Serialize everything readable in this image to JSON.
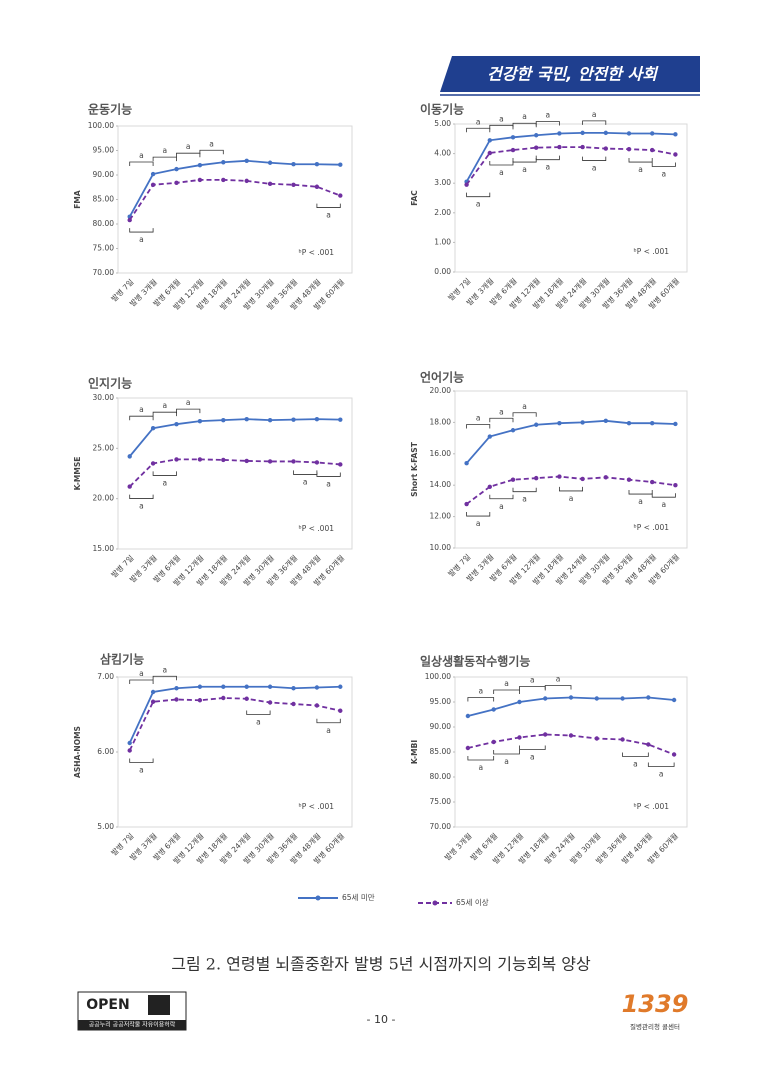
{
  "header": {
    "banner": "건강한 국민, 안전한 사회"
  },
  "chart_data": [
    {
      "type": "line",
      "title": "운동기능",
      "y_label": "FMA",
      "annotation": "ᵇP < .001",
      "categories": [
        "발병 7일",
        "발병 3개월",
        "발병 6개월",
        "발병 12개월",
        "발병 18개월",
        "발병 24개월",
        "발병 30개월",
        "발병 36개월",
        "발병 48개월",
        "발병 60개월"
      ],
      "series": [
        {
          "name": "65세 미만",
          "color": "#4472c4",
          "line_style": "solid",
          "values": [
            81.5,
            90.2,
            91.2,
            92,
            92.6,
            92.9,
            92.5,
            92.2,
            92.2,
            92.1
          ]
        },
        {
          "name": "65세 이상",
          "color": "#7030a0",
          "line_style": "dashed",
          "values": [
            80.8,
            88,
            88.4,
            89,
            89,
            88.8,
            88.2,
            88,
            87.6,
            85.8
          ]
        }
      ],
      "ylim": [
        70,
        100
      ],
      "yticks": [
        {
          "value": 70,
          "label": "70.00"
        },
        {
          "value": 75,
          "label": "75.00"
        },
        {
          "value": 80,
          "label": "80.00"
        },
        {
          "value": 85,
          "label": "85.00"
        },
        {
          "value": 90,
          "label": "90.00"
        },
        {
          "value": 95,
          "label": "95.00"
        },
        {
          "value": 100,
          "label": "100.00"
        }
      ],
      "upper_brackets": [
        {
          "between": [
            "발병 7일",
            "발병 3개월"
          ],
          "label": "a"
        },
        {
          "between": [
            "발병 3개월",
            "발병 6개월"
          ],
          "label": "a"
        },
        {
          "between": [
            "발병 6개월",
            "발병 12개월"
          ],
          "label": "a"
        },
        {
          "between": [
            "발병 12개월",
            "발병 18개월"
          ],
          "label": "a"
        }
      ],
      "lower_brackets": [
        {
          "between": [
            "발병 7일",
            "발병 3개월"
          ],
          "label": "a"
        },
        {
          "between": [
            "발병 48개월",
            "발병 60개월"
          ],
          "label": "a"
        }
      ]
    },
    {
      "type": "line",
      "title": "이동기능",
      "y_label": "FAC",
      "annotation": "ᵇP < .001",
      "categories": [
        "발병 7일",
        "발병 3개월",
        "발병 6개월",
        "발병 12개월",
        "발병 18개월",
        "발병 24개월",
        "발병 30개월",
        "발병 36개월",
        "발병 48개월",
        "발병 60개월"
      ],
      "series": [
        {
          "name": "65세 미만",
          "color": "#4472c4",
          "line_style": "solid",
          "values": [
            3.05,
            4.45,
            4.55,
            4.62,
            4.68,
            4.7,
            4.7,
            4.68,
            4.68,
            4.65
          ]
        },
        {
          "name": "65세 이상",
          "color": "#7030a0",
          "line_style": "dashed",
          "values": [
            2.95,
            4.02,
            4.12,
            4.2,
            4.22,
            4.22,
            4.17,
            4.15,
            4.12,
            3.97
          ]
        }
      ],
      "ylim": [
        0,
        5
      ],
      "yticks": [
        {
          "value": 0,
          "label": "0.00"
        },
        {
          "value": 1,
          "label": "1.00"
        },
        {
          "value": 2,
          "label": "2.00"
        },
        {
          "value": 3,
          "label": "3.00"
        },
        {
          "value": 4,
          "label": "4.00"
        },
        {
          "value": 5,
          "label": "5.00"
        }
      ],
      "upper_brackets": [
        {
          "between": [
            "발병 7일",
            "발병 3개월"
          ],
          "label": "a"
        },
        {
          "between": [
            "발병 3개월",
            "발병 6개월"
          ],
          "label": "a"
        },
        {
          "between": [
            "발병 6개월",
            "발병 12개월"
          ],
          "label": "a"
        },
        {
          "between": [
            "발병 12개월",
            "발병 18개월"
          ],
          "label": "a"
        },
        {
          "between": [
            "발병 24개월",
            "발병 30개월"
          ],
          "label": "a"
        }
      ],
      "lower_brackets": [
        {
          "between": [
            "발병 7일",
            "발병 3개월"
          ],
          "label": "a"
        },
        {
          "between": [
            "발병 3개월",
            "발병 6개월"
          ],
          "label": "a"
        },
        {
          "between": [
            "발병 6개월",
            "발병 12개월"
          ],
          "label": "a"
        },
        {
          "between": [
            "발병 12개월",
            "발병 18개월"
          ],
          "label": "a"
        },
        {
          "between": [
            "발병 24개월",
            "발병 30개월"
          ],
          "label": "a"
        },
        {
          "between": [
            "발병 36개월",
            "발병 48개월"
          ],
          "label": "a"
        },
        {
          "between": [
            "발병 48개월",
            "발병 60개월"
          ],
          "label": "a"
        }
      ]
    },
    {
      "type": "line",
      "title": "인지기능",
      "y_label": "K-MMSE",
      "annotation": "ᵇP < .001",
      "categories": [
        "발병 7일",
        "발병 3개월",
        "발병 6개월",
        "발병 12개월",
        "발병 18개월",
        "발병 24개월",
        "발병 30개월",
        "발병 36개월",
        "발병 48개월",
        "발병 60개월"
      ],
      "series": [
        {
          "name": "65세 미만",
          "color": "#4472c4",
          "line_style": "solid",
          "values": [
            24.2,
            27,
            27.4,
            27.7,
            27.8,
            27.9,
            27.8,
            27.85,
            27.9,
            27.85
          ]
        },
        {
          "name": "65세 이상",
          "color": "#7030a0",
          "line_style": "dashed",
          "values": [
            21.2,
            23.5,
            23.9,
            23.9,
            23.85,
            23.75,
            23.7,
            23.7,
            23.6,
            23.4
          ]
        }
      ],
      "ylim": [
        15,
        30
      ],
      "yticks": [
        {
          "value": 15,
          "label": "15.00"
        },
        {
          "value": 20,
          "label": "20.00"
        },
        {
          "value": 25,
          "label": "25.00"
        },
        {
          "value": 30,
          "label": "30.00"
        }
      ],
      "upper_brackets": [
        {
          "between": [
            "발병 7일",
            "발병 3개월"
          ],
          "label": "a"
        },
        {
          "between": [
            "발병 3개월",
            "발병 6개월"
          ],
          "label": "a"
        },
        {
          "between": [
            "발병 6개월",
            "발병 12개월"
          ],
          "label": "a"
        }
      ],
      "lower_brackets": [
        {
          "between": [
            "발병 7일",
            "발병 3개월"
          ],
          "label": "a"
        },
        {
          "between": [
            "발병 3개월",
            "발병 6개월"
          ],
          "label": "a"
        },
        {
          "between": [
            "발병 36개월",
            "발병 48개월"
          ],
          "label": "a"
        },
        {
          "between": [
            "발병 48개월",
            "발병 60개월"
          ],
          "label": "a"
        }
      ]
    },
    {
      "type": "line",
      "title": "언어기능",
      "y_label": "Short K-FAST",
      "annotation": "ᵇP < .001",
      "categories": [
        "발병 7일",
        "발병 3개월",
        "발병 6개월",
        "발병 12개월",
        "발병 18개월",
        "발병 24개월",
        "발병 30개월",
        "발병 36개월",
        "발병 48개월",
        "발병 60개월"
      ],
      "series": [
        {
          "name": "65세 미만",
          "color": "#4472c4",
          "line_style": "solid",
          "values": [
            15.4,
            17.1,
            17.5,
            17.85,
            17.95,
            18,
            18.1,
            17.95,
            17.95,
            17.9
          ]
        },
        {
          "name": "65세 이상",
          "color": "#7030a0",
          "line_style": "dashed",
          "values": [
            12.8,
            13.9,
            14.35,
            14.45,
            14.55,
            14.4,
            14.5,
            14.35,
            14.2,
            14
          ]
        }
      ],
      "ylim": [
        10,
        20
      ],
      "yticks": [
        {
          "value": 10,
          "label": "10.00"
        },
        {
          "value": 12,
          "label": "12.00"
        },
        {
          "value": 14,
          "label": "14.00"
        },
        {
          "value": 16,
          "label": "16.00"
        },
        {
          "value": 18,
          "label": "18.00"
        },
        {
          "value": 20,
          "label": "20.00"
        }
      ],
      "upper_brackets": [
        {
          "between": [
            "발병 7일",
            "발병 3개월"
          ],
          "label": "a"
        },
        {
          "between": [
            "발병 3개월",
            "발병 6개월"
          ],
          "label": "a"
        },
        {
          "between": [
            "발병 6개월",
            "발병 12개월"
          ],
          "label": "a"
        }
      ],
      "lower_brackets": [
        {
          "between": [
            "발병 7일",
            "발병 3개월"
          ],
          "label": "a"
        },
        {
          "between": [
            "발병 3개월",
            "발병 6개월"
          ],
          "label": "a"
        },
        {
          "between": [
            "발병 6개월",
            "발병 12개월"
          ],
          "label": "a"
        },
        {
          "between": [
            "발병 18개월",
            "발병 24개월"
          ],
          "label": "a"
        },
        {
          "between": [
            "발병 36개월",
            "발병 48개월"
          ],
          "label": "a"
        },
        {
          "between": [
            "발병 48개월",
            "발병 60개월"
          ],
          "label": "a"
        }
      ]
    },
    {
      "type": "line",
      "title": "삼킴기능",
      "y_label": "ASHA-NOMS",
      "annotation": "ᵇP < .001",
      "categories": [
        "발병 7일",
        "발병 3개월",
        "발병 6개월",
        "발병 12개월",
        "발병 18개월",
        "발병 24개월",
        "발병 30개월",
        "발병 36개월",
        "발병 48개월",
        "발병 60개월"
      ],
      "series": [
        {
          "name": "65세 미만",
          "color": "#4472c4",
          "line_style": "solid",
          "values": [
            6.12,
            6.8,
            6.85,
            6.87,
            6.87,
            6.87,
            6.87,
            6.85,
            6.86,
            6.87
          ]
        },
        {
          "name": "65세 이상",
          "color": "#7030a0",
          "line_style": "dashed",
          "values": [
            6.02,
            6.67,
            6.7,
            6.69,
            6.72,
            6.71,
            6.66,
            6.64,
            6.62,
            6.55
          ]
        }
      ],
      "ylim": [
        5,
        7
      ],
      "yticks": [
        {
          "value": 5,
          "label": "5.00"
        },
        {
          "value": 6,
          "label": "6.00"
        },
        {
          "value": 7,
          "label": "7.00"
        }
      ],
      "upper_brackets": [
        {
          "between": [
            "발병 7일",
            "발병 3개월"
          ],
          "label": "a"
        },
        {
          "between": [
            "발병 3개월",
            "발병 6개월"
          ],
          "label": "a"
        }
      ],
      "lower_brackets": [
        {
          "between": [
            "발병 7일",
            "발병 3개월"
          ],
          "label": "a"
        },
        {
          "between": [
            "발병 24개월",
            "발병 30개월"
          ],
          "label": "a"
        },
        {
          "between": [
            "발병 48개월",
            "발병 60개월"
          ],
          "label": "a"
        }
      ]
    },
    {
      "type": "line",
      "title": "일상생활동작수행기능",
      "y_label": "K-MBI",
      "annotation": "ᵇP < .001",
      "categories": [
        "발병 3개월",
        "발병 6개월",
        "발병 12개월",
        "발병 18개월",
        "발병 24개월",
        "발병 30개월",
        "발병 36개월",
        "발병 48개월",
        "발병 60개월"
      ],
      "series": [
        {
          "name": "65세 미만",
          "color": "#4472c4",
          "line_style": "solid",
          "values": [
            92.2,
            93.5,
            95,
            95.7,
            95.9,
            95.7,
            95.7,
            95.9,
            95.4
          ]
        },
        {
          "name": "65세 이상",
          "color": "#7030a0",
          "line_style": "dashed",
          "values": [
            85.8,
            87,
            87.9,
            88.5,
            88.3,
            87.7,
            87.5,
            86.5,
            84.5
          ]
        }
      ],
      "ylim": [
        70,
        100
      ],
      "yticks": [
        {
          "value": 70,
          "label": "70.00"
        },
        {
          "value": 75,
          "label": "75.00"
        },
        {
          "value": 80,
          "label": "80.00"
        },
        {
          "value": 85,
          "label": "85.00"
        },
        {
          "value": 90,
          "label": "90.00"
        },
        {
          "value": 95,
          "label": "95.00"
        },
        {
          "value": 100,
          "label": "100.00"
        }
      ],
      "upper_brackets": [
        {
          "between": [
            "발병 3개월",
            "발병 6개월"
          ],
          "label": "a"
        },
        {
          "between": [
            "발병 6개월",
            "발병 12개월"
          ],
          "label": "a"
        },
        {
          "between": [
            "발병 12개월",
            "발병 18개월"
          ],
          "label": "a"
        },
        {
          "between": [
            "발병 18개월",
            "발병 24개월"
          ],
          "label": "a"
        }
      ],
      "lower_brackets": [
        {
          "between": [
            "발병 3개월",
            "발병 6개월"
          ],
          "label": "a"
        },
        {
          "between": [
            "발병 6개월",
            "발병 12개월"
          ],
          "label": "a"
        },
        {
          "between": [
            "발병 12개월",
            "발병 18개월"
          ],
          "label": "a"
        },
        {
          "between": [
            "발병 36개월",
            "발병 48개월"
          ],
          "label": "a"
        },
        {
          "between": [
            "발병 48개월",
            "발병 60개월"
          ],
          "label": "a"
        }
      ]
    }
  ],
  "caption": "그림 2. 연령별 뇌졸중환자 발병 5년 시점까지의 기능회복 양상",
  "page_number": "- 10 -",
  "footer": {
    "open_logo": "OPEN",
    "open_sub": "공공누리 공공저작물 자유이용허락",
    "callcenter": "1339",
    "callcenter_sub": "질병관리청 콜센터"
  }
}
